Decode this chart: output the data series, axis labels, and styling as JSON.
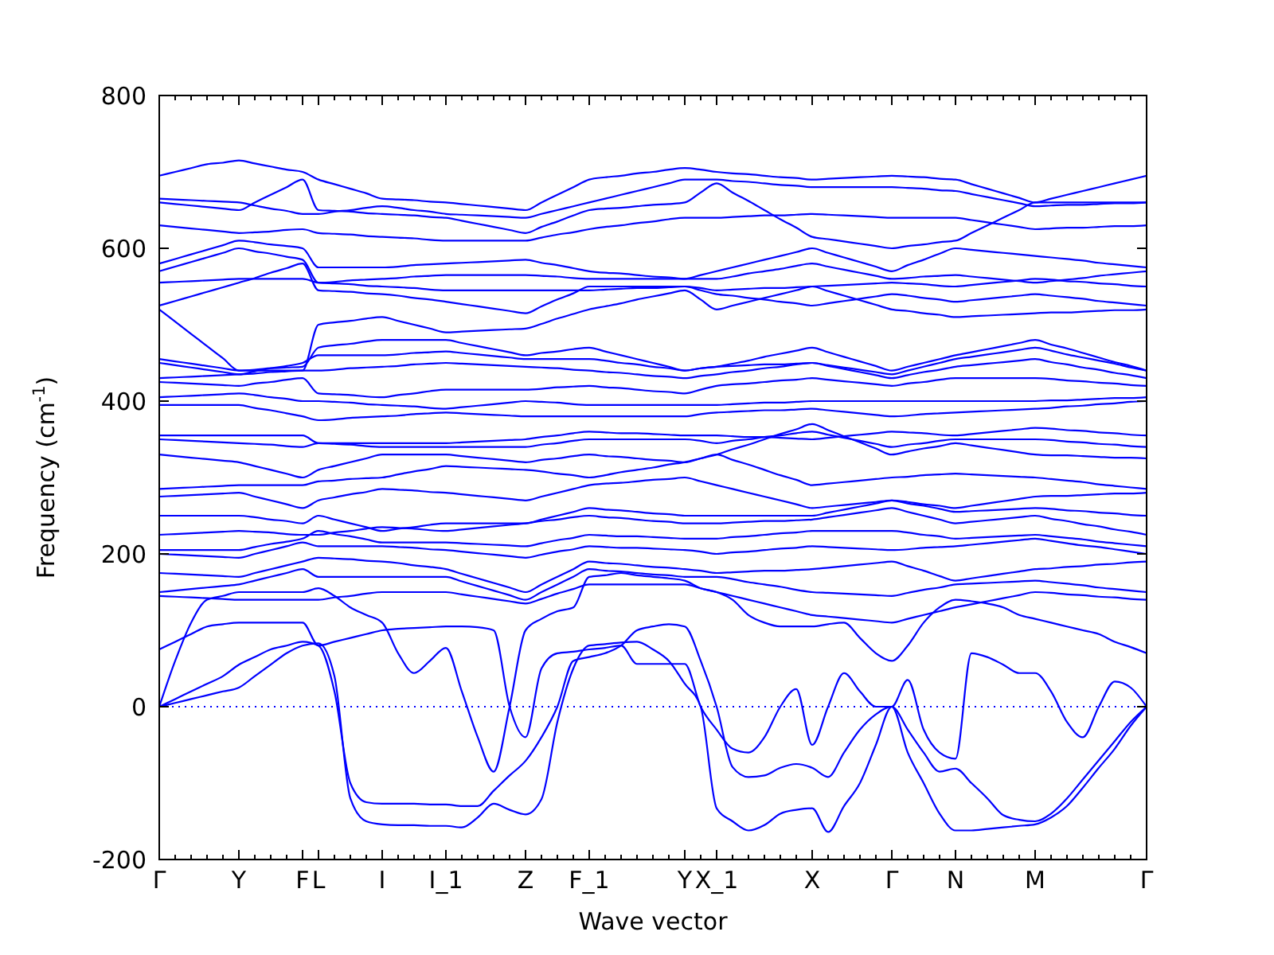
{
  "chart_data": {
    "type": "line",
    "xlabel": "Wave vector",
    "ylabel": "Frequency (cm$^{-1}$)",
    "ylim": [
      -200,
      800
    ],
    "categories": [
      "Γ",
      null,
      null,
      null,
      null,
      "Y",
      null,
      null,
      null,
      "F",
      "L",
      null,
      null,
      null,
      "I",
      null,
      null,
      null,
      "I_1",
      null,
      null,
      null,
      null,
      "Z",
      null,
      null,
      null,
      "F_1",
      null,
      null,
      null,
      null,
      null,
      "Y",
      null,
      "X_1",
      null,
      null,
      null,
      null,
      null,
      "X",
      null,
      null,
      null,
      null,
      "Γ",
      null,
      null,
      null,
      "N",
      null,
      null,
      null,
      null,
      "M",
      null,
      null,
      null,
      null,
      null,
      null,
      "Γ"
    ],
    "yticks": [
      -200,
      0,
      200,
      400,
      600,
      800
    ],
    "grid": false,
    "line_style": "solid",
    "marker": "none",
    "ref_lines": [
      {
        "axis": "y",
        "value": 0,
        "color": "#0000ff",
        "line_style": "dotted"
      }
    ],
    "series": [
      {
        "color": "#0000ff",
        "values": [
          0,
          5,
          10,
          15,
          20,
          25,
          40,
          55,
          70,
          80,
          83,
          40,
          -120,
          -150,
          -154,
          -155,
          -155,
          -156,
          -156,
          -158,
          -145,
          -127,
          -135,
          -141,
          -121,
          -20,
          50,
          80,
          82,
          84,
          85,
          75,
          60,
          30,
          0,
          -133,
          -150,
          -162,
          -155,
          -140,
          -135,
          -133,
          -164,
          -130,
          -100,
          -50,
          0,
          -60,
          -100,
          -140,
          -162,
          -162,
          -160,
          -158,
          -156,
          -154,
          -145,
          -130,
          -106,
          -80,
          -55,
          -25,
          0
        ]
      },
      {
        "color": "#0000ff",
        "values": [
          0,
          10,
          20,
          30,
          40,
          55,
          65,
          75,
          80,
          85,
          80,
          20,
          -100,
          -125,
          -127,
          -127,
          -127,
          -128,
          -128,
          -130,
          -130,
          -110,
          -90,
          -71,
          -40,
          0,
          60,
          65,
          70,
          80,
          100,
          105,
          108,
          105,
          60,
          0,
          -79,
          -92,
          -90,
          -80,
          -75,
          -80,
          -92,
          -60,
          -30,
          -10,
          0,
          -30,
          -60,
          -85,
          -81,
          -100,
          -120,
          -142,
          -148,
          -150,
          -140,
          -120,
          -95,
          -70,
          -45,
          -20,
          0
        ]
      },
      {
        "color": "#0000ff",
        "values": [
          0,
          60,
          110,
          140,
          145,
          150,
          150,
          150,
          150,
          150,
          155,
          145,
          130,
          120,
          110,
          70,
          44,
          60,
          77,
          20,
          -40,
          -85,
          0,
          100,
          115,
          125,
          130,
          170,
          172,
          175,
          172,
          170,
          168,
          165,
          155,
          150,
          140,
          120,
          110,
          105,
          105,
          105,
          108,
          110,
          90,
          70,
          60,
          80,
          110,
          130,
          140,
          138,
          135,
          130,
          120,
          115,
          110,
          105,
          100,
          95,
          85,
          78,
          70
        ]
      },
      {
        "color": "#0000ff",
        "values": [
          75,
          85,
          95,
          105,
          108,
          110,
          110,
          110,
          110,
          110,
          80,
          85,
          90,
          95,
          100,
          102,
          103,
          104,
          105,
          105,
          104,
          100,
          0,
          -40,
          50,
          70,
          72,
          75,
          77,
          80,
          56,
          56,
          56,
          56,
          0,
          -30,
          -55,
          -60,
          -40,
          0,
          23,
          -50,
          0,
          44,
          20,
          0,
          0,
          35,
          -30,
          -60,
          -68,
          70,
          65,
          55,
          44,
          44,
          20,
          -20,
          -40,
          0,
          33,
          25,
          0
        ]
      },
      {
        "color": "#0000ff",
        "values": [
          695,
          700,
          705,
          710,
          712,
          715,
          711,
          707,
          703,
          700,
          690,
          684,
          678,
          672,
          665,
          664,
          663,
          661,
          660,
          658,
          656,
          654,
          652,
          650,
          660,
          670,
          680,
          690,
          693,
          695,
          698,
          700,
          703,
          705,
          703,
          700,
          698,
          697,
          695,
          693,
          692,
          690,
          691,
          692,
          693,
          694,
          695,
          694,
          693,
          691,
          690,
          684,
          678,
          672,
          666,
          660,
          665,
          670,
          675,
          680,
          685,
          690,
          695
        ]
      },
      {
        "color": "#0000ff",
        "values": [
          665,
          664,
          663,
          662,
          661,
          660,
          656,
          652,
          649,
          645,
          645,
          648,
          650,
          653,
          655,
          653,
          650,
          648,
          645,
          644,
          643,
          642,
          641,
          640,
          645,
          650,
          655,
          660,
          665,
          670,
          675,
          680,
          685,
          690,
          690,
          690,
          688,
          687,
          685,
          683,
          682,
          680,
          680,
          680,
          680,
          680,
          680,
          679,
          678,
          676,
          675,
          671,
          667,
          663,
          659,
          655,
          656,
          657,
          657,
          658,
          659,
          659,
          660
        ]
      },
      {
        "color": "#0000ff",
        "values": [
          660,
          658,
          656,
          654,
          652,
          650,
          660,
          670,
          680,
          690,
          650,
          649,
          648,
          646,
          645,
          644,
          643,
          641,
          640,
          636,
          632,
          628,
          624,
          620,
          628,
          635,
          643,
          650,
          652,
          653,
          655,
          657,
          658,
          660,
          673,
          685,
          673,
          662,
          650,
          638,
          627,
          615,
          612,
          609,
          606,
          603,
          600,
          603,
          605,
          608,
          610,
          620,
          630,
          640,
          650,
          660,
          660,
          660,
          660,
          660,
          660,
          660,
          660
        ]
      },
      {
        "color": "#0000ff",
        "values": [
          630,
          628,
          626,
          624,
          622,
          620,
          621,
          622,
          624,
          625,
          620,
          619,
          618,
          616,
          615,
          614,
          613,
          611,
          610,
          610,
          610,
          610,
          610,
          610,
          614,
          618,
          621,
          625,
          628,
          630,
          633,
          635,
          638,
          640,
          640,
          640,
          641,
          642,
          643,
          643,
          644,
          645,
          644,
          643,
          642,
          641,
          640,
          640,
          640,
          640,
          640,
          637,
          634,
          631,
          628,
          625,
          626,
          627,
          627,
          628,
          629,
          629,
          630
        ]
      },
      {
        "color": "#0000ff",
        "values": [
          580,
          586,
          592,
          598,
          604,
          610,
          608,
          605,
          603,
          600,
          575,
          575,
          575,
          575,
          575,
          576,
          578,
          579,
          580,
          581,
          582,
          583,
          584,
          585,
          581,
          578,
          574,
          570,
          568,
          567,
          565,
          563,
          562,
          560,
          565,
          570,
          575,
          580,
          585,
          590,
          595,
          600,
          594,
          588,
          582,
          576,
          570,
          578,
          585,
          593,
          600,
          598,
          596,
          594,
          592,
          590,
          588,
          586,
          584,
          581,
          579,
          577,
          575
        ]
      },
      {
        "color": "#0000ff",
        "values": [
          570,
          576,
          582,
          588,
          594,
          600,
          596,
          593,
          589,
          585,
          555,
          556,
          558,
          559,
          560,
          561,
          563,
          564,
          565,
          565,
          565,
          565,
          565,
          565,
          564,
          563,
          561,
          560,
          560,
          560,
          560,
          560,
          560,
          560,
          560,
          560,
          563,
          567,
          570,
          573,
          577,
          580,
          576,
          572,
          568,
          564,
          560,
          561,
          563,
          564,
          565,
          563,
          561,
          559,
          557,
          555,
          557,
          559,
          561,
          564,
          566,
          568,
          570
        ]
      },
      {
        "color": "#0000ff",
        "values": [
          555,
          556,
          557,
          558,
          559,
          560,
          560,
          560,
          560,
          560,
          555,
          554,
          553,
          551,
          550,
          549,
          548,
          546,
          545,
          545,
          545,
          545,
          545,
          545,
          545,
          545,
          545,
          545,
          546,
          547,
          548,
          548,
          549,
          550,
          548,
          545,
          546,
          547,
          548,
          548,
          549,
          550,
          551,
          552,
          553,
          554,
          555,
          554,
          553,
          551,
          550,
          552,
          554,
          556,
          558,
          560,
          559,
          557,
          556,
          554,
          553,
          551,
          550
        ]
      },
      {
        "color": "#0000ff",
        "values": [
          525,
          531,
          537,
          543,
          549,
          555,
          561,
          568,
          574,
          580,
          545,
          544,
          543,
          541,
          540,
          538,
          535,
          533,
          530,
          527,
          524,
          521,
          518,
          515,
          524,
          533,
          541,
          550,
          550,
          550,
          550,
          550,
          550,
          550,
          545,
          540,
          538,
          535,
          533,
          530,
          528,
          525,
          528,
          531,
          534,
          537,
          540,
          538,
          535,
          533,
          530,
          532,
          534,
          536,
          538,
          540,
          538,
          536,
          534,
          531,
          529,
          527,
          525
        ]
      },
      {
        "color": "#0000ff",
        "values": [
          520,
          504,
          488,
          472,
          456,
          440,
          440,
          440,
          440,
          440,
          500,
          503,
          505,
          508,
          510,
          505,
          500,
          495,
          490,
          491,
          492,
          493,
          494,
          495,
          501,
          508,
          514,
          520,
          524,
          528,
          533,
          537,
          541,
          545,
          533,
          520,
          525,
          530,
          535,
          540,
          545,
          550,
          544,
          538,
          532,
          526,
          520,
          518,
          515,
          513,
          510,
          511,
          512,
          513,
          514,
          515,
          516,
          516,
          517,
          518,
          519,
          519,
          520
        ]
      },
      {
        "color": "#0000ff",
        "values": [
          455,
          452,
          449,
          446,
          443,
          440,
          441,
          443,
          444,
          445,
          470,
          473,
          475,
          478,
          480,
          480,
          480,
          480,
          480,
          476,
          472,
          468,
          464,
          460,
          463,
          465,
          468,
          470,
          465,
          460,
          455,
          450,
          445,
          440,
          443,
          445,
          449,
          453,
          458,
          462,
          466,
          470,
          464,
          458,
          452,
          446,
          440,
          445,
          450,
          455,
          460,
          464,
          468,
          472,
          476,
          480,
          474,
          469,
          463,
          457,
          451,
          446,
          440
        ]
      },
      {
        "color": "#0000ff",
        "values": [
          450,
          447,
          444,
          441,
          438,
          435,
          439,
          443,
          446,
          450,
          460,
          460,
          460,
          460,
          460,
          461,
          463,
          464,
          465,
          463,
          461,
          459,
          457,
          455,
          455,
          455,
          455,
          455,
          453,
          450,
          448,
          445,
          443,
          440,
          443,
          445,
          446,
          447,
          448,
          448,
          449,
          450,
          447,
          444,
          441,
          438,
          435,
          440,
          445,
          450,
          455,
          458,
          461,
          464,
          467,
          470,
          466,
          461,
          457,
          453,
          449,
          444,
          440
        ]
      },
      {
        "color": "#0000ff",
        "values": [
          430,
          431,
          432,
          433,
          434,
          435,
          436,
          438,
          439,
          440,
          440,
          441,
          443,
          444,
          445,
          446,
          448,
          449,
          450,
          449,
          448,
          447,
          446,
          445,
          444,
          443,
          441,
          440,
          438,
          437,
          435,
          433,
          432,
          430,
          433,
          435,
          438,
          440,
          443,
          445,
          448,
          450,
          446,
          442,
          438,
          434,
          430,
          434,
          438,
          441,
          445,
          447,
          449,
          451,
          453,
          455,
          451,
          448,
          444,
          441,
          437,
          434,
          430
        ]
      },
      {
        "color": "#0000ff",
        "values": [
          425,
          424,
          423,
          422,
          421,
          420,
          423,
          425,
          428,
          430,
          410,
          409,
          408,
          406,
          405,
          408,
          410,
          413,
          415,
          415,
          415,
          415,
          415,
          415,
          416,
          418,
          419,
          420,
          418,
          417,
          415,
          413,
          412,
          410,
          415,
          420,
          422,
          423,
          425,
          427,
          428,
          430,
          428,
          426,
          424,
          422,
          420,
          423,
          425,
          428,
          430,
          430,
          430,
          430,
          430,
          430,
          429,
          427,
          426,
          424,
          423,
          421,
          420
        ]
      },
      {
        "color": "#0000ff",
        "values": [
          405,
          406,
          407,
          408,
          409,
          410,
          408,
          405,
          403,
          400,
          400,
          399,
          398,
          396,
          395,
          394,
          393,
          391,
          390,
          392,
          394,
          396,
          398,
          400,
          399,
          398,
          396,
          395,
          395,
          395,
          395,
          395,
          395,
          395,
          395,
          395,
          396,
          397,
          398,
          398,
          399,
          400,
          400,
          400,
          400,
          400,
          400,
          400,
          400,
          400,
          400,
          400,
          400,
          400,
          400,
          400,
          401,
          401,
          402,
          403,
          404,
          404,
          405
        ]
      },
      {
        "color": "#0000ff",
        "values": [
          395,
          395,
          395,
          395,
          395,
          395,
          391,
          388,
          384,
          380,
          375,
          376,
          378,
          379,
          380,
          381,
          383,
          384,
          385,
          384,
          383,
          382,
          381,
          380,
          380,
          380,
          380,
          380,
          380,
          380,
          380,
          380,
          380,
          380,
          383,
          385,
          386,
          387,
          388,
          388,
          389,
          390,
          388,
          386,
          384,
          382,
          380,
          381,
          383,
          384,
          385,
          386,
          387,
          388,
          389,
          390,
          391,
          393,
          394,
          396,
          397,
          399,
          400
        ]
      },
      {
        "color": "#0000ff",
        "values": [
          355,
          355,
          355,
          355,
          355,
          355,
          355,
          355,
          355,
          355,
          345,
          345,
          345,
          345,
          345,
          345,
          345,
          345,
          345,
          346,
          347,
          348,
          349,
          350,
          353,
          355,
          358,
          360,
          359,
          358,
          358,
          357,
          356,
          355,
          355,
          355,
          354,
          353,
          353,
          352,
          351,
          350,
          352,
          354,
          356,
          358,
          360,
          359,
          358,
          356,
          355,
          357,
          359,
          361,
          363,
          365,
          364,
          362,
          361,
          359,
          358,
          356,
          355
        ]
      },
      {
        "color": "#0000ff",
        "values": [
          350,
          349,
          348,
          347,
          346,
          345,
          344,
          343,
          341,
          340,
          345,
          344,
          343,
          341,
          340,
          340,
          340,
          340,
          340,
          340,
          340,
          340,
          340,
          340,
          343,
          345,
          348,
          350,
          350,
          350,
          350,
          350,
          350,
          350,
          348,
          345,
          348,
          350,
          353,
          355,
          358,
          360,
          356,
          352,
          348,
          344,
          340,
          343,
          345,
          348,
          350,
          350,
          350,
          350,
          350,
          350,
          349,
          347,
          346,
          344,
          343,
          341,
          340
        ]
      },
      {
        "color": "#0000ff",
        "values": [
          330,
          328,
          326,
          324,
          322,
          320,
          315,
          310,
          305,
          300,
          310,
          315,
          320,
          325,
          330,
          330,
          330,
          330,
          330,
          328,
          326,
          324,
          322,
          320,
          323,
          325,
          328,
          330,
          328,
          327,
          325,
          323,
          322,
          320,
          325,
          330,
          337,
          343,
          350,
          357,
          363,
          370,
          362,
          354,
          346,
          338,
          330,
          334,
          338,
          341,
          345,
          342,
          339,
          336,
          333,
          330,
          329,
          329,
          328,
          327,
          326,
          326,
          325
        ]
      },
      {
        "color": "#0000ff",
        "values": [
          285,
          286,
          287,
          288,
          289,
          290,
          290,
          290,
          290,
          290,
          295,
          296,
          298,
          299,
          300,
          304,
          308,
          311,
          315,
          314,
          313,
          312,
          311,
          310,
          308,
          305,
          303,
          300,
          303,
          307,
          310,
          313,
          317,
          320,
          325,
          330,
          323,
          317,
          310,
          303,
          297,
          290,
          292,
          294,
          296,
          298,
          300,
          301,
          303,
          304,
          305,
          304,
          303,
          302,
          301,
          300,
          298,
          296,
          294,
          291,
          289,
          287,
          285
        ]
      },
      {
        "color": "#0000ff",
        "values": [
          275,
          276,
          277,
          278,
          279,
          280,
          275,
          270,
          265,
          260,
          270,
          274,
          278,
          281,
          285,
          284,
          283,
          281,
          280,
          278,
          276,
          274,
          272,
          270,
          275,
          280,
          285,
          290,
          292,
          293,
          295,
          297,
          298,
          300,
          295,
          290,
          285,
          280,
          275,
          270,
          265,
          260,
          262,
          264,
          266,
          268,
          270,
          268,
          265,
          263,
          260,
          263,
          266,
          269,
          272,
          275,
          276,
          276,
          277,
          278,
          279,
          279,
          280
        ]
      },
      {
        "color": "#0000ff",
        "values": [
          250,
          250,
          250,
          250,
          250,
          250,
          248,
          245,
          243,
          240,
          250,
          245,
          240,
          235,
          230,
          233,
          235,
          238,
          240,
          240,
          240,
          240,
          240,
          240,
          245,
          250,
          255,
          260,
          258,
          257,
          255,
          253,
          252,
          250,
          250,
          250,
          250,
          250,
          250,
          250,
          250,
          250,
          254,
          258,
          262,
          266,
          270,
          266,
          263,
          259,
          255,
          256,
          257,
          258,
          259,
          260,
          259,
          257,
          256,
          254,
          253,
          251,
          250
        ]
      },
      {
        "color": "#0000ff",
        "values": [
          225,
          226,
          227,
          228,
          229,
          230,
          229,
          228,
          226,
          225,
          225,
          228,
          230,
          233,
          235,
          234,
          233,
          231,
          230,
          232,
          234,
          236,
          238,
          240,
          243,
          245,
          248,
          250,
          248,
          247,
          245,
          243,
          242,
          240,
          240,
          240,
          241,
          242,
          243,
          243,
          244,
          245,
          248,
          251,
          254,
          257,
          260,
          255,
          250,
          245,
          240,
          242,
          244,
          246,
          248,
          250,
          246,
          243,
          239,
          236,
          232,
          229,
          225
        ]
      },
      {
        "color": "#0000ff",
        "values": [
          205,
          205,
          205,
          205,
          205,
          205,
          209,
          213,
          216,
          220,
          230,
          226,
          223,
          219,
          215,
          215,
          215,
          215,
          215,
          214,
          213,
          212,
          211,
          210,
          214,
          218,
          221,
          225,
          224,
          223,
          223,
          222,
          221,
          220,
          220,
          220,
          222,
          223,
          225,
          227,
          228,
          230,
          230,
          230,
          230,
          230,
          230,
          228,
          225,
          223,
          220,
          221,
          222,
          223,
          224,
          225,
          223,
          221,
          219,
          216,
          214,
          212,
          210
        ]
      },
      {
        "color": "#0000ff",
        "values": [
          200,
          199,
          198,
          197,
          196,
          195,
          200,
          205,
          210,
          215,
          210,
          210,
          210,
          210,
          210,
          209,
          208,
          206,
          205,
          203,
          201,
          199,
          197,
          195,
          199,
          203,
          206,
          210,
          209,
          208,
          208,
          207,
          206,
          205,
          203,
          200,
          202,
          203,
          205,
          207,
          208,
          210,
          209,
          208,
          207,
          206,
          205,
          206,
          208,
          209,
          210,
          212,
          214,
          216,
          218,
          220,
          217,
          214,
          211,
          209,
          206,
          203,
          200
        ]
      },
      {
        "color": "#0000ff",
        "values": [
          175,
          174,
          173,
          172,
          171,
          170,
          175,
          180,
          185,
          190,
          195,
          194,
          193,
          191,
          190,
          188,
          185,
          183,
          180,
          174,
          168,
          162,
          156,
          150,
          160,
          170,
          180,
          190,
          188,
          187,
          185,
          183,
          182,
          180,
          178,
          175,
          176,
          177,
          178,
          178,
          179,
          180,
          182,
          184,
          186,
          188,
          190,
          184,
          178,
          171,
          165,
          168,
          171,
          174,
          177,
          180,
          181,
          183,
          184,
          186,
          187,
          189,
          190
        ]
      },
      {
        "color": "#0000ff",
        "values": [
          150,
          152,
          154,
          156,
          158,
          160,
          165,
          170,
          175,
          180,
          170,
          170,
          170,
          170,
          170,
          170,
          170,
          170,
          170,
          164,
          158,
          152,
          146,
          140,
          150,
          160,
          170,
          180,
          178,
          177,
          175,
          173,
          172,
          170,
          170,
          170,
          167,
          163,
          160,
          157,
          153,
          150,
          149,
          148,
          147,
          146,
          145,
          149,
          153,
          156,
          160,
          161,
          162,
          163,
          164,
          165,
          163,
          161,
          159,
          156,
          154,
          152,
          150
        ]
      },
      {
        "color": "#0000ff",
        "values": [
          145,
          144,
          143,
          142,
          141,
          140,
          140,
          140,
          140,
          140,
          140,
          143,
          145,
          148,
          150,
          150,
          150,
          150,
          150,
          147,
          144,
          141,
          138,
          135,
          141,
          148,
          154,
          160,
          160,
          160,
          160,
          160,
          160,
          160,
          155,
          150,
          145,
          140,
          135,
          130,
          125,
          120,
          118,
          116,
          114,
          112,
          110,
          115,
          120,
          125,
          130,
          134,
          138,
          142,
          146,
          150,
          149,
          147,
          146,
          144,
          143,
          141,
          140
        ]
      }
    ]
  }
}
